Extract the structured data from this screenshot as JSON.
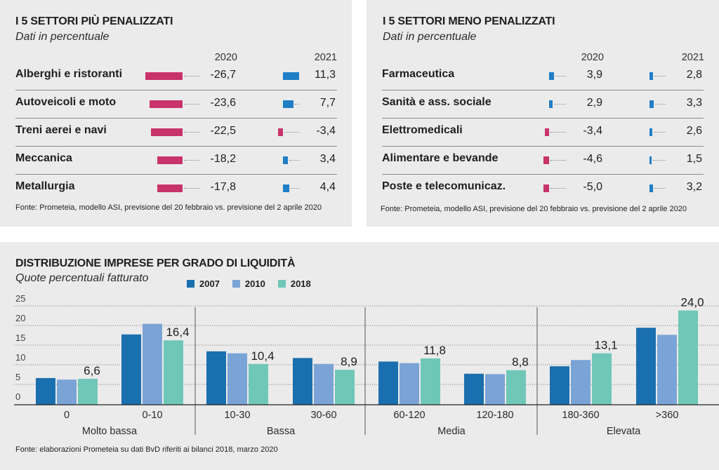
{
  "colors": {
    "negative": "#c8336a",
    "positive": "#1f7ec6",
    "s2007": "#1a6fae",
    "s2010": "#7ba4d6",
    "s2018": "#6fc7b8",
    "panel_bg": "#ebebeb"
  },
  "left_panel": {
    "title": "I 5 SETTORI PIÙ PENALIZZATI",
    "subtitle": "Dati in percentuale",
    "col_2020": "2020",
    "col_2021": "2021",
    "rows": [
      {
        "label": "Alberghi e ristoranti",
        "v2020": -26.7,
        "t2020": "-26,7",
        "v2021": 11.3,
        "t2021": "11,3"
      },
      {
        "label": "Autoveicoli e moto",
        "v2020": -23.6,
        "t2020": "-23,6",
        "v2021": 7.7,
        "t2021": "7,7"
      },
      {
        "label": "Treni aerei e navi",
        "v2020": -22.5,
        "t2020": "-22,5",
        "v2021": -3.4,
        "t2021": "-3,4"
      },
      {
        "label": "Meccanica",
        "v2020": -18.2,
        "t2020": "-18,2",
        "v2021": 3.4,
        "t2021": "3,4"
      },
      {
        "label": "Metallurgia",
        "v2020": -17.8,
        "t2020": "-17,8",
        "v2021": 4.4,
        "t2021": "4,4"
      }
    ],
    "source": "Fonte: Prometeia, modello ASI, previsione del 20 febbraio vs. previsione del 2 aprile 2020"
  },
  "right_panel": {
    "title": "I 5 SETTORI MENO PENALIZZATI",
    "subtitle": "Dati in percentuale",
    "col_2020": "2020",
    "col_2021": "2021",
    "rows": [
      {
        "label": "Farmaceutica",
        "v2020": 3.9,
        "t2020": "3,9",
        "v2021": 2.8,
        "t2021": "2,8"
      },
      {
        "label": "Sanità e ass. sociale",
        "v2020": 2.9,
        "t2020": "2,9",
        "v2021": 3.3,
        "t2021": "3,3"
      },
      {
        "label": "Elettromedicali",
        "v2020": -3.4,
        "t2020": "-3,4",
        "v2021": 2.6,
        "t2021": "2,6"
      },
      {
        "label": "Alimentare e bevande",
        "v2020": -4.6,
        "t2020": "-4,6",
        "v2021": 1.5,
        "t2021": "1,5"
      },
      {
        "label": "Poste e telecomunicaz.",
        "v2020": -5.0,
        "t2020": "-5,0",
        "v2021": 3.2,
        "t2021": "3,2"
      }
    ],
    "source": "Fonte: Prometeia, modello ASI, previsione del 20 febbraio vs. previsione del 2 aprile 2020"
  },
  "chart_data": [
    {
      "type": "bar",
      "orientation": "horizontal",
      "title": "I 5 SETTORI PIÙ PENALIZZATI",
      "subtitle": "Dati in percentuale",
      "categories": [
        "Alberghi e ristoranti",
        "Autoveicoli e moto",
        "Treni aerei e navi",
        "Meccanica",
        "Metallurgia"
      ],
      "series": [
        {
          "name": "2020",
          "values": [
            -26.7,
            -23.6,
            -22.5,
            -18.2,
            -17.8
          ]
        },
        {
          "name": "2021",
          "values": [
            11.3,
            7.7,
            -3.4,
            3.4,
            4.4
          ]
        }
      ]
    },
    {
      "type": "bar",
      "orientation": "horizontal",
      "title": "I 5 SETTORI MENO PENALIZZATI",
      "subtitle": "Dati in percentuale",
      "categories": [
        "Farmaceutica",
        "Sanità e ass. sociale",
        "Elettromedicali",
        "Alimentare e bevande",
        "Poste e telecomunicaz."
      ],
      "series": [
        {
          "name": "2020",
          "values": [
            3.9,
            2.9,
            -3.4,
            -4.6,
            -5.0
          ]
        },
        {
          "name": "2021",
          "values": [
            2.8,
            3.3,
            2.6,
            1.5,
            3.2
          ]
        }
      ]
    },
    {
      "type": "bar",
      "title": "DISTRIBUZIONE IMPRESE PER GRADO DI LIQUIDITÀ",
      "subtitle": "Quote percentuali fatturato",
      "categories": [
        "0",
        "0-10",
        "10-30",
        "30-60",
        "60-120",
        "120-180",
        "180-360",
        ">360"
      ],
      "groups": [
        {
          "label": "Molto bassa",
          "categories": [
            "0",
            "0-10"
          ]
        },
        {
          "label": "Bassa",
          "categories": [
            "10-30",
            "30-60"
          ]
        },
        {
          "label": "Media",
          "categories": [
            "60-120",
            "120-180"
          ]
        },
        {
          "label": "Elevata",
          "categories": [
            "180-360",
            ">360"
          ]
        }
      ],
      "series": [
        {
          "name": "2007",
          "values": [
            6.8,
            17.9,
            13.6,
            11.9,
            11.0,
            7.9,
            9.8,
            19.6
          ]
        },
        {
          "name": "2010",
          "values": [
            6.4,
            20.6,
            13.1,
            10.4,
            10.6,
            7.8,
            11.4,
            17.8
          ]
        },
        {
          "name": "2018",
          "values": [
            6.6,
            16.4,
            10.4,
            8.9,
            11.8,
            8.8,
            13.1,
            24.0
          ]
        }
      ],
      "data_labels": [
        "6,6",
        "16,4",
        "10,4",
        "8,9",
        "11,8",
        "8,8",
        "13,1",
        "24,0"
      ],
      "ylim": [
        0,
        25
      ],
      "yticks": [
        "0",
        "5",
        "10",
        "15",
        "20",
        "25"
      ],
      "grid": true,
      "legend": "top",
      "xlabel": "",
      "ylabel": ""
    }
  ],
  "bottom_panel": {
    "title": "DISTRIBUZIONE IMPRESE PER GRADO DI LIQUIDITÀ",
    "subtitle": "Quote percentuali fatturato",
    "legend": [
      "2007",
      "2010",
      "2018"
    ],
    "source": "Fonte: elaborazioni Prometeia su dati BvD riferiti ai bilanci 2018, marzo 2020"
  }
}
